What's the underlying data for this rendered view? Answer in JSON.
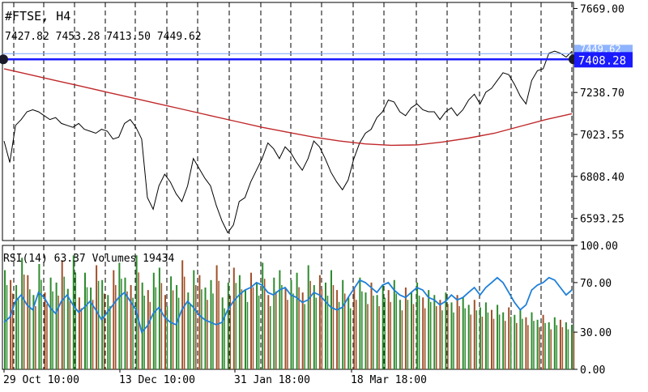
{
  "header": {
    "symbol_label": "#FTSE, H4",
    "ohlc_label": "7427.82 7453.28 7413.50 7449.62"
  },
  "colors": {
    "background": "#ffffff",
    "price_line": "#000000",
    "moving_average": "#c0282a",
    "horizontal_line": "#1a1aff",
    "horizontal_line_label_bg": "#1a1aff",
    "rsi_line": "#1e7fd8",
    "volume_up": "#2e8b2e",
    "volume_down": "#a0502a",
    "grid": "#000000"
  },
  "chart_data": [
    {
      "type": "line",
      "panel": "price",
      "ylim": [
        6480,
        7700
      ],
      "yticks": [
        "7669.00",
        "7238.70",
        "7023.55",
        "6808.40",
        "6593.25"
      ],
      "grid": "vertical dashed",
      "hline": {
        "value": 7408.28,
        "label": "7408.28",
        "line_label_partial": "7449.62"
      },
      "series": [
        {
          "kind": "price",
          "points": [
            6990,
            6880,
            7070,
            7100,
            7140,
            7150,
            7140,
            7120,
            7100,
            7110,
            7080,
            7070,
            7060,
            7080,
            7050,
            7040,
            7030,
            7050,
            7040,
            7000,
            7010,
            7080,
            7100,
            7060,
            7000,
            6700,
            6640,
            6760,
            6820,
            6780,
            6720,
            6680,
            6760,
            6900,
            6850,
            6800,
            6760,
            6660,
            6580,
            6520,
            6560,
            6680,
            6700,
            6780,
            6840,
            6900,
            6980,
            6950,
            6900,
            6960,
            6930,
            6880,
            6840,
            6900,
            6990,
            6960,
            6900,
            6830,
            6780,
            6740,
            6790,
            6900,
            6980,
            7030,
            7050,
            7110,
            7140,
            7200,
            7190,
            7140,
            7120,
            7160,
            7180,
            7150,
            7140,
            7140,
            7100,
            7140,
            7160,
            7120,
            7150,
            7200,
            7230,
            7180,
            7240,
            7260,
            7300,
            7340,
            7330,
            7280,
            7220,
            7180,
            7300,
            7350,
            7360,
            7440,
            7450,
            7440,
            7420,
            7449
          ]
        },
        {
          "kind": "moving-average",
          "points": [
            7360,
            7330,
            7300,
            7270,
            7240,
            7210,
            7180,
            7150,
            7120,
            7090,
            7060,
            7035,
            7010,
            6990,
            6975,
            6968,
            6970,
            6985,
            7005,
            7030,
            7065,
            7100,
            7130
          ]
        }
      ]
    },
    {
      "type": "line",
      "panel": "indicator",
      "label": "RSI(14) 63.37 Volumes 19434",
      "ylim": [
        0,
        100
      ],
      "yticks": [
        "100.00",
        "70.00",
        "30.00",
        "0.00"
      ],
      "series": [
        {
          "kind": "rsi",
          "points": [
            38,
            42,
            55,
            60,
            52,
            48,
            62,
            58,
            50,
            45,
            55,
            60,
            52,
            46,
            50,
            55,
            48,
            40,
            46,
            52,
            58,
            62,
            55,
            48,
            30,
            35,
            45,
            50,
            42,
            38,
            36,
            48,
            55,
            50,
            44,
            40,
            38,
            36,
            38,
            48,
            55,
            60,
            64,
            66,
            70,
            68,
            62,
            60,
            64,
            66,
            60,
            58,
            54,
            56,
            62,
            60,
            55,
            50,
            48,
            50,
            58,
            65,
            72,
            70,
            66,
            62,
            68,
            70,
            64,
            60,
            58,
            62,
            66,
            64,
            58,
            56,
            52,
            55,
            60,
            56,
            58,
            62,
            66,
            60,
            66,
            70,
            74,
            70,
            62,
            54,
            48,
            52,
            64,
            68,
            70,
            74,
            72,
            66,
            60,
            64
          ]
        },
        {
          "kind": "volume",
          "values": [
            80,
            72,
            68,
            90,
            76,
            60,
            85,
            62,
            74,
            70,
            88,
            65,
            92,
            58,
            78,
            66,
            84,
            72,
            60,
            80,
            86,
            74,
            68,
            92,
            70,
            64,
            78,
            82,
            60,
            75,
            68,
            88,
            62,
            80,
            76,
            66,
            72,
            84,
            58,
            70,
            82,
            76,
            64,
            78,
            70,
            86,
            60,
            74,
            80,
            66,
            72,
            78,
            62,
            84,
            68,
            76,
            70,
            80,
            64,
            72,
            58,
            66,
            74,
            62,
            70,
            60,
            68,
            64,
            72,
            56,
            66,
            62,
            70,
            58,
            64,
            60,
            56,
            62,
            54,
            60,
            58,
            52,
            56,
            50,
            54,
            48,
            52,
            46,
            50,
            44,
            48,
            42,
            46,
            40,
            44,
            38,
            42,
            40,
            38,
            36
          ]
        }
      ]
    }
  ],
  "x_axis": {
    "labels": [
      "29 Oct 10:00",
      "13 Dec 10:00",
      "31 Jan 18:00",
      "18 Mar 18:00"
    ]
  }
}
